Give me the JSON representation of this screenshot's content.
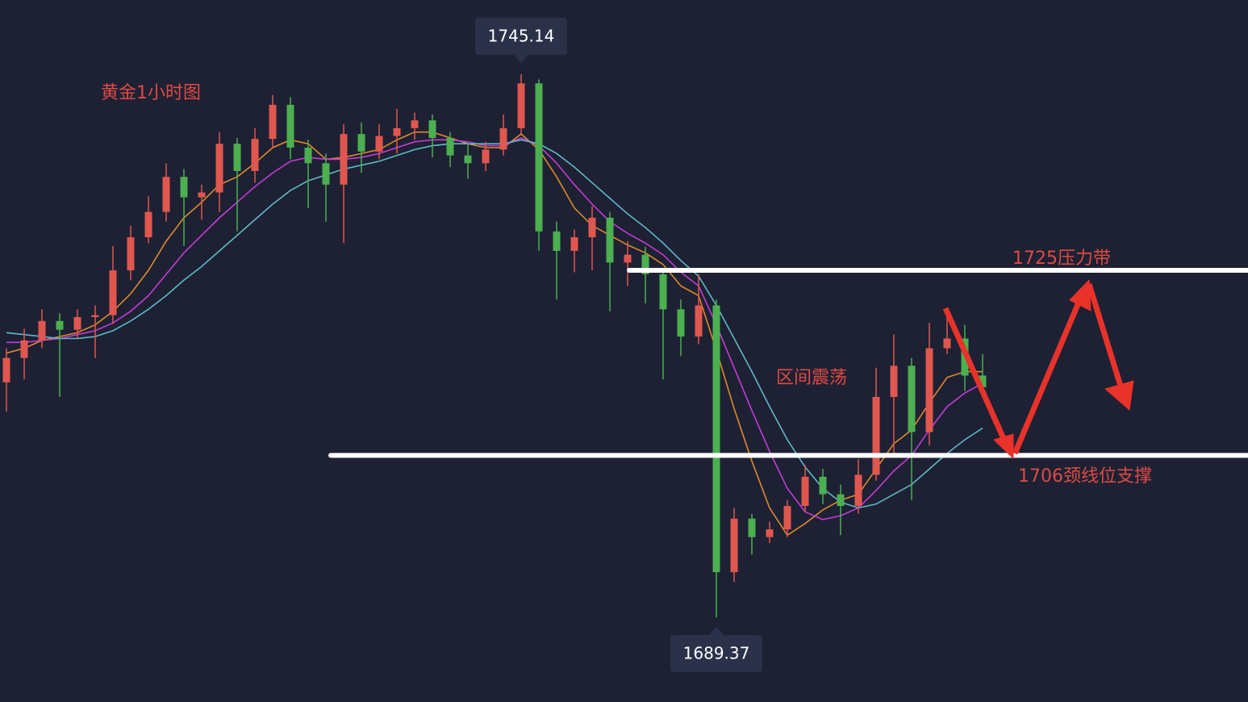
{
  "chart_data": {
    "type": "candlestick",
    "title": "黄金1小时图",
    "up_color": "#e0574f",
    "down_color": "#4caf50",
    "candles": [
      [
        1713.5,
        1717.0,
        1710.5,
        1716.0
      ],
      [
        1716.0,
        1719.0,
        1713.8,
        1717.8
      ],
      [
        1717.8,
        1721.0,
        1717.0,
        1719.8
      ],
      [
        1719.8,
        1720.6,
        1712.0,
        1718.9
      ],
      [
        1718.9,
        1721.0,
        1718.0,
        1720.2
      ],
      [
        1720.2,
        1721.4,
        1716.0,
        1720.4
      ],
      [
        1720.4,
        1727.5,
        1719.5,
        1725.0
      ],
      [
        1725.0,
        1729.6,
        1724.0,
        1728.4
      ],
      [
        1728.4,
        1732.6,
        1727.8,
        1731.0
      ],
      [
        1731.0,
        1736.0,
        1730.0,
        1734.6
      ],
      [
        1734.6,
        1735.4,
        1727.5,
        1732.5
      ],
      [
        1732.5,
        1733.8,
        1730.2,
        1733.0
      ],
      [
        1733.0,
        1739.2,
        1731.0,
        1738.0
      ],
      [
        1738.0,
        1738.6,
        1729.0,
        1735.2
      ],
      [
        1735.2,
        1739.6,
        1734.0,
        1738.5
      ],
      [
        1738.5,
        1743.0,
        1737.6,
        1742.0
      ],
      [
        1742.0,
        1742.8,
        1736.4,
        1737.6
      ],
      [
        1737.6,
        1738.4,
        1731.4,
        1736.0
      ],
      [
        1736.0,
        1737.0,
        1730.0,
        1733.8
      ],
      [
        1733.8,
        1740.0,
        1727.8,
        1739.0
      ],
      [
        1739.0,
        1740.2,
        1735.0,
        1737.2
      ],
      [
        1737.2,
        1740.0,
        1736.4,
        1738.8
      ],
      [
        1738.8,
        1741.6,
        1737.0,
        1739.6
      ],
      [
        1739.6,
        1741.2,
        1738.4,
        1740.4
      ],
      [
        1740.4,
        1741.0,
        1736.6,
        1738.6
      ],
      [
        1738.6,
        1739.2,
        1735.6,
        1736.8
      ],
      [
        1736.8,
        1738.0,
        1734.4,
        1736.0
      ],
      [
        1736.0,
        1738.2,
        1735.2,
        1737.4
      ],
      [
        1737.4,
        1741.0,
        1736.8,
        1739.6
      ],
      [
        1739.6,
        1745.14,
        1739.0,
        1744.2
      ],
      [
        1744.2,
        1744.6,
        1727.0,
        1729.0
      ],
      [
        1729.0,
        1730.0,
        1722.0,
        1727.0
      ],
      [
        1727.0,
        1729.2,
        1724.8,
        1728.4
      ],
      [
        1728.4,
        1731.6,
        1725.0,
        1730.4
      ],
      [
        1730.4,
        1731.0,
        1720.8,
        1725.8
      ],
      [
        1725.8,
        1728.0,
        1723.4,
        1726.6
      ],
      [
        1726.6,
        1727.4,
        1721.6,
        1724.6
      ],
      [
        1724.6,
        1725.2,
        1713.8,
        1721.0
      ],
      [
        1721.0,
        1722.0,
        1716.2,
        1718.2
      ],
      [
        1718.2,
        1724.6,
        1717.4,
        1721.4
      ],
      [
        1721.4,
        1722.0,
        1689.37,
        1694.0
      ],
      [
        1694.0,
        1700.6,
        1693.0,
        1699.5
      ],
      [
        1699.5,
        1700.0,
        1695.8,
        1697.6
      ],
      [
        1697.6,
        1699.2,
        1697.0,
        1698.4
      ],
      [
        1698.4,
        1701.4,
        1697.6,
        1700.8
      ],
      [
        1700.8,
        1705.0,
        1700.2,
        1703.8
      ],
      [
        1703.8,
        1704.6,
        1701.0,
        1702.0
      ],
      [
        1702.0,
        1703.0,
        1697.8,
        1700.8
      ],
      [
        1700.8,
        1705.6,
        1700.0,
        1704.0
      ],
      [
        1704.0,
        1715.0,
        1703.4,
        1712.0
      ],
      [
        1712.0,
        1718.4,
        1706.0,
        1715.2
      ],
      [
        1715.2,
        1716.0,
        1701.4,
        1708.4
      ],
      [
        1708.4,
        1719.6,
        1707.0,
        1717.0
      ],
      [
        1717.0,
        1721.0,
        1716.4,
        1718.0
      ],
      [
        1718.0,
        1719.4,
        1712.6,
        1714.2
      ],
      [
        1714.2,
        1716.4,
        1712.4,
        1713.0
      ]
    ],
    "ma": [
      {
        "color": "#e0892a",
        "values": [
          1716.5,
          1717.0,
          1717.8,
          1718.2,
          1718.6,
          1719.4,
          1720.8,
          1722.6,
          1725.0,
          1728.0,
          1730.4,
          1732.0,
          1733.8,
          1734.6,
          1736.0,
          1737.6,
          1738.4,
          1738.0,
          1736.4,
          1736.6,
          1737.0,
          1737.4,
          1738.4,
          1739.2,
          1739.2,
          1738.6,
          1738.0,
          1737.6,
          1737.6,
          1739.0,
          1737.4,
          1734.6,
          1731.4,
          1729.6,
          1728.6,
          1727.6,
          1726.8,
          1725.6,
          1723.4,
          1722.4,
          1716.8,
          1710.8,
          1705.4,
          1700.6,
          1697.8,
          1699.0,
          1700.4,
          1701.4,
          1702.0,
          1704.6,
          1707.2,
          1708.6,
          1711.4,
          1714.0,
          1714.6,
          1714.6
        ]
      },
      {
        "color": "#c43bd6",
        "values": [
          1717.6,
          1717.6,
          1717.8,
          1718.0,
          1718.4,
          1718.8,
          1719.6,
          1720.8,
          1722.4,
          1724.6,
          1726.8,
          1728.6,
          1730.4,
          1732.0,
          1733.6,
          1735.0,
          1736.2,
          1736.6,
          1736.4,
          1736.4,
          1736.6,
          1737.0,
          1737.6,
          1738.2,
          1738.4,
          1738.4,
          1738.2,
          1737.8,
          1737.8,
          1738.6,
          1737.8,
          1736.0,
          1733.8,
          1731.8,
          1730.0,
          1728.8,
          1727.8,
          1726.6,
          1724.8,
          1723.4,
          1719.4,
          1715.0,
          1710.6,
          1706.4,
          1702.6,
          1700.2,
          1699.4,
          1699.8,
          1700.6,
          1702.4,
          1704.4,
          1706.0,
          1708.6,
          1711.0,
          1712.4,
          1713.4
        ]
      },
      {
        "color": "#5fb8c8",
        "values": [
          1718.6,
          1718.4,
          1718.2,
          1718.0,
          1718.0,
          1718.2,
          1718.8,
          1719.8,
          1721.0,
          1722.4,
          1724.0,
          1725.4,
          1727.0,
          1728.6,
          1730.2,
          1731.8,
          1733.2,
          1734.2,
          1734.8,
          1735.4,
          1735.8,
          1736.2,
          1736.8,
          1737.4,
          1737.8,
          1738.0,
          1738.0,
          1738.0,
          1738.0,
          1738.4,
          1738.0,
          1737.0,
          1735.6,
          1734.0,
          1732.4,
          1730.8,
          1729.4,
          1727.8,
          1726.0,
          1724.4,
          1721.4,
          1718.0,
          1714.6,
          1711.0,
          1707.6,
          1704.8,
          1702.6,
          1701.2,
          1700.6,
          1701.0,
          1702.0,
          1703.0,
          1704.6,
          1706.2,
          1707.6,
          1708.8
        ]
      }
    ],
    "high_label": 1745.14,
    "low_label": 1689.37,
    "levels": [
      {
        "value": 1725,
        "label": "1725压力带"
      },
      {
        "value": 1706,
        "label": "1706颈线位支撑"
      }
    ],
    "range_label": "区间震荡"
  }
}
